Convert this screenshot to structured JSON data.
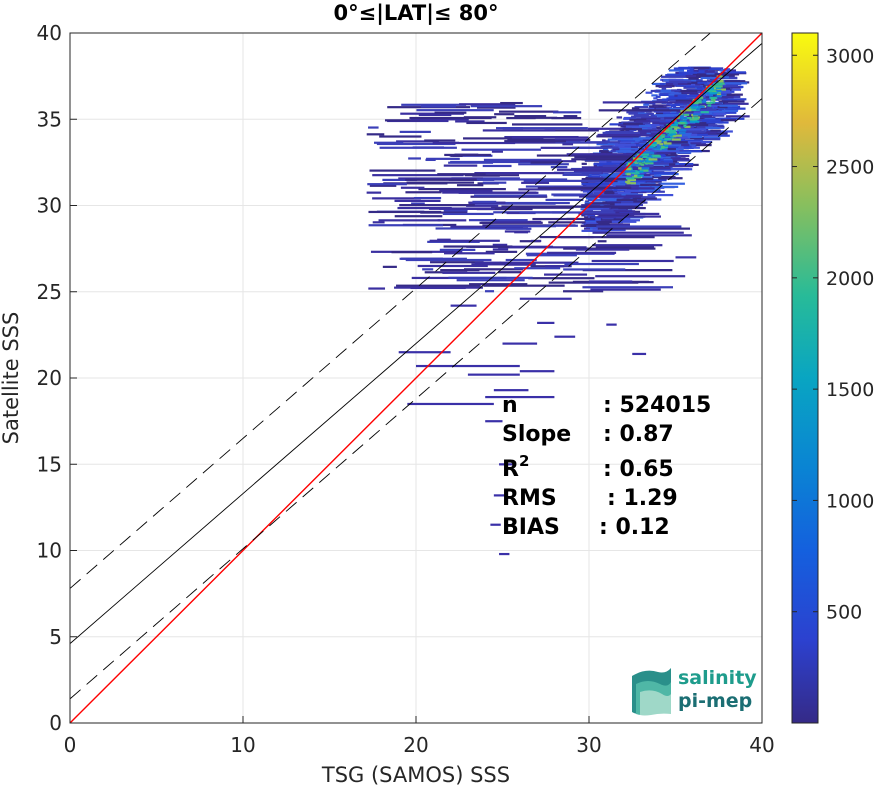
{
  "chart_data": {
    "type": "heatmap",
    "title": "0°≤|LAT|≤ 80°",
    "xlabel": "TSG (SAMOS) SSS",
    "ylabel": "Satellite SSS",
    "xlim": [
      0,
      40
    ],
    "ylim": [
      0,
      40
    ],
    "xticks": [
      "0",
      "10",
      "20",
      "30",
      "40"
    ],
    "yticks": [
      "0",
      "5",
      "10",
      "15",
      "20",
      "25",
      "30",
      "35",
      "40"
    ],
    "grid": true,
    "colorbar": {
      "range": [
        0,
        3100
      ],
      "ticks": [
        "500",
        "1000",
        "1500",
        "2000",
        "2500",
        "3000"
      ],
      "tick_values": [
        500,
        1000,
        1500,
        2000,
        2500,
        3000
      ],
      "colormap": "parula"
    },
    "lines": [
      {
        "name": "identity",
        "slope": 1.0,
        "intercept": 0.0,
        "color": "#ff0000",
        "style": "solid"
      },
      {
        "name": "regression",
        "slope": 0.87,
        "intercept": 4.6,
        "color": "#000000",
        "style": "solid"
      },
      {
        "name": "upper-bound",
        "slope": 0.87,
        "intercept": 7.8,
        "color": "#000000",
        "style": "dashed"
      },
      {
        "name": "lower-bound",
        "slope": 0.87,
        "intercept": 1.4,
        "color": "#000000",
        "style": "dashed"
      }
    ],
    "stats": [
      {
        "label": "n",
        "value": ": 524015"
      },
      {
        "label": "Slope",
        "value": ": 0.87"
      },
      {
        "label": "R",
        "sup": "2",
        "value": ": 0.65"
      },
      {
        "label": "RMS",
        "value": ": 1.29"
      },
      {
        "label": "BIAS",
        "value": ": 0.12"
      }
    ]
  },
  "logo": {
    "line1": "salinity",
    "line2": "pi-mep"
  }
}
